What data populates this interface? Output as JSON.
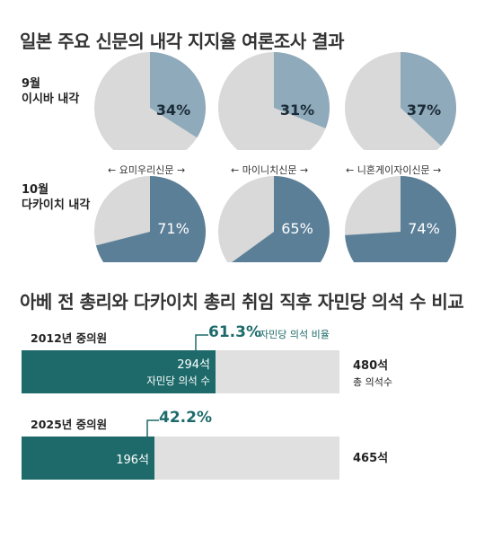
{
  "titles": {
    "approval": "일본 주요 신문의 내각 지지율 여론조사 결과",
    "seats": "아베 전 총리와 다카이치 총리 취임 직후 자민당 의석 수 비교"
  },
  "rows": [
    {
      "month": "9월",
      "cabinet": "이시바 내각"
    },
    {
      "month": "10월",
      "cabinet": "다카이치 내각"
    }
  ],
  "newspapers": [
    "요미우리신문",
    "마이니치신문",
    "니혼게이자이신문"
  ],
  "colors": {
    "pie_bg": "#d9d9d9",
    "pie_sept": "#8faabb",
    "pie_oct": "#5c7f98",
    "bar_fill": "#1e6a6a",
    "bar_bg": "#e0e0e0",
    "accent_text": "#1e6a6a"
  },
  "chart_data": [
    {
      "type": "pie",
      "title": "일본 주요 신문의 내각 지지율 여론조사 결과",
      "categories": [
        "요미우리신문",
        "마이니치신문",
        "니혼게이자이신문"
      ],
      "series": [
        {
          "name": "9월 이시바 내각",
          "values": [
            34,
            31,
            37
          ],
          "labels": [
            "34%",
            "31%",
            "37%"
          ]
        },
        {
          "name": "10월 다카이치 내각",
          "values": [
            71,
            65,
            74
          ],
          "labels": [
            "71%",
            "65%",
            "74%"
          ]
        }
      ]
    },
    {
      "type": "bar",
      "title": "아베 전 총리와 다카이치 총리 취임 직후 자민당 의석 수 비교",
      "categories": [
        "2012년 중의원",
        "2025년 중의원"
      ],
      "series": [
        {
          "name": "자민당 의석 수",
          "values": [
            294,
            196
          ],
          "labels": [
            "294석",
            "196석"
          ]
        },
        {
          "name": "총 의석수",
          "values": [
            480,
            465
          ],
          "labels": [
            "480석",
            "465석"
          ]
        }
      ],
      "share_labels": [
        "61.3%",
        "42.2%"
      ],
      "share_caption": "자민당 의석 비율",
      "bar_caption": "자민당 의석 수",
      "total_caption": "총 의석수"
    }
  ]
}
